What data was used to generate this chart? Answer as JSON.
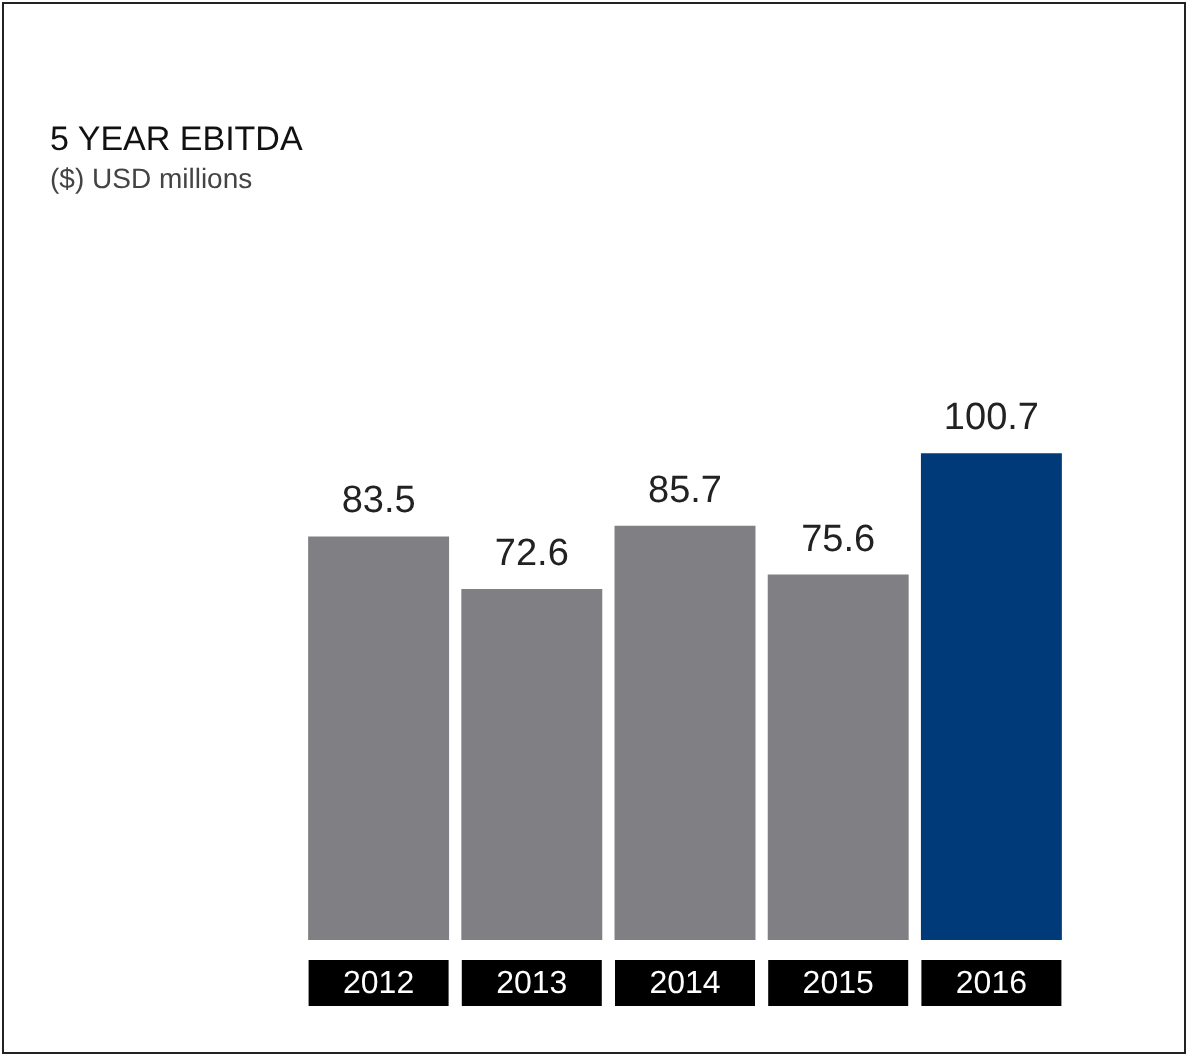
{
  "chart_data": {
    "type": "bar",
    "title": "5 YEAR EBITDA",
    "subtitle": "($) USD millions",
    "categories": [
      "2012",
      "2013",
      "2014",
      "2015",
      "2016"
    ],
    "values": [
      83.5,
      72.6,
      85.7,
      75.6,
      100.7
    ],
    "colors": [
      "#808084",
      "#808084",
      "#808084",
      "#808084",
      "#003a79"
    ],
    "data_labels": true
  }
}
